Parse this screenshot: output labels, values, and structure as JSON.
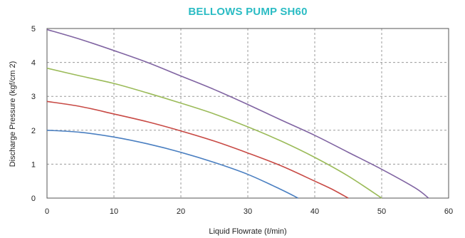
{
  "chart_data": {
    "type": "line",
    "title": "BELLOWS PUMP SH60",
    "title_color": "#2bbcc4",
    "xlabel": "Liquid Flowrate (ℓ/min)",
    "ylabel": "Discharge Pressure (kgf/cm 2)",
    "xlim": [
      0,
      60
    ],
    "ylim": [
      0,
      5
    ],
    "x_ticks": [
      "0",
      "10",
      "20",
      "30",
      "40",
      "50",
      "60"
    ],
    "y_ticks": [
      "0",
      "1",
      "2",
      "3",
      "4",
      "5"
    ],
    "grid": "dashed",
    "legend": "none",
    "series": [
      {
        "color": "#4a7fc1",
        "x": [
          0,
          5,
          10,
          15,
          20,
          25,
          30,
          35,
          37.5
        ],
        "y": [
          2.0,
          1.94,
          1.8,
          1.6,
          1.35,
          1.05,
          0.7,
          0.25,
          0.0
        ]
      },
      {
        "color": "#c84a45",
        "x": [
          0,
          5,
          10,
          15,
          20,
          25,
          30,
          35,
          40,
          42.5,
          45
        ],
        "y": [
          2.85,
          2.7,
          2.48,
          2.25,
          1.98,
          1.68,
          1.33,
          0.95,
          0.5,
          0.27,
          0.0
        ]
      },
      {
        "color": "#9bbb59",
        "x": [
          0,
          5,
          10,
          15,
          20,
          25,
          30,
          35,
          40,
          45,
          50
        ],
        "y": [
          3.83,
          3.6,
          3.38,
          3.1,
          2.8,
          2.48,
          2.1,
          1.68,
          1.2,
          0.65,
          0.0
        ]
      },
      {
        "color": "#8064a2",
        "x": [
          0,
          5,
          10,
          15,
          20,
          25,
          30,
          35,
          40,
          45,
          50,
          55,
          57
        ],
        "y": [
          4.97,
          4.68,
          4.35,
          4.0,
          3.6,
          3.2,
          2.76,
          2.3,
          1.85,
          1.35,
          0.85,
          0.3,
          0.0
        ]
      }
    ]
  }
}
